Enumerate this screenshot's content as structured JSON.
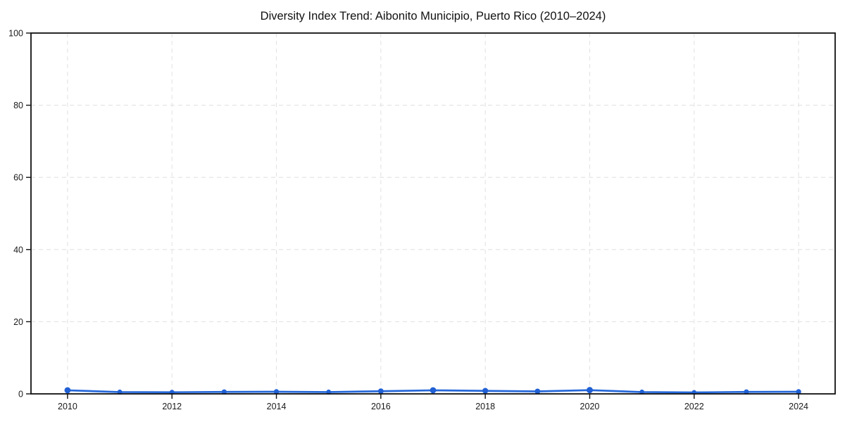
{
  "chart_data": {
    "type": "line",
    "title": "Diversity Index Trend: Aibonito Municipio, Puerto Rico (2010–2024)",
    "xlabel": "",
    "ylabel": "",
    "x": [
      2010,
      2011,
      2012,
      2013,
      2014,
      2015,
      2016,
      2017,
      2018,
      2019,
      2020,
      2021,
      2022,
      2023,
      2024
    ],
    "series": [
      {
        "name": "Diversity Index",
        "values": [
          1.0,
          0.5,
          0.45,
          0.55,
          0.6,
          0.5,
          0.75,
          1.0,
          0.85,
          0.7,
          1.05,
          0.5,
          0.4,
          0.55,
          0.6
        ]
      }
    ],
    "xlim": [
      2009.3,
      2024.7
    ],
    "ylim": [
      0,
      100
    ],
    "xticks": [
      2010,
      2012,
      2014,
      2016,
      2018,
      2020,
      2022,
      2024
    ],
    "yticks": [
      0,
      20,
      40,
      60,
      80,
      100
    ],
    "grid": true,
    "grid_style": "dashed",
    "legend": "none",
    "band_halfwidth": 0.35,
    "colors": {
      "line": "#2467d9",
      "marker": "#2060d4",
      "band": "#8fb3ea",
      "grid": "#e3e3e3",
      "spine": "#111111",
      "text": "#1a1a1a",
      "background": "#ffffff"
    }
  }
}
